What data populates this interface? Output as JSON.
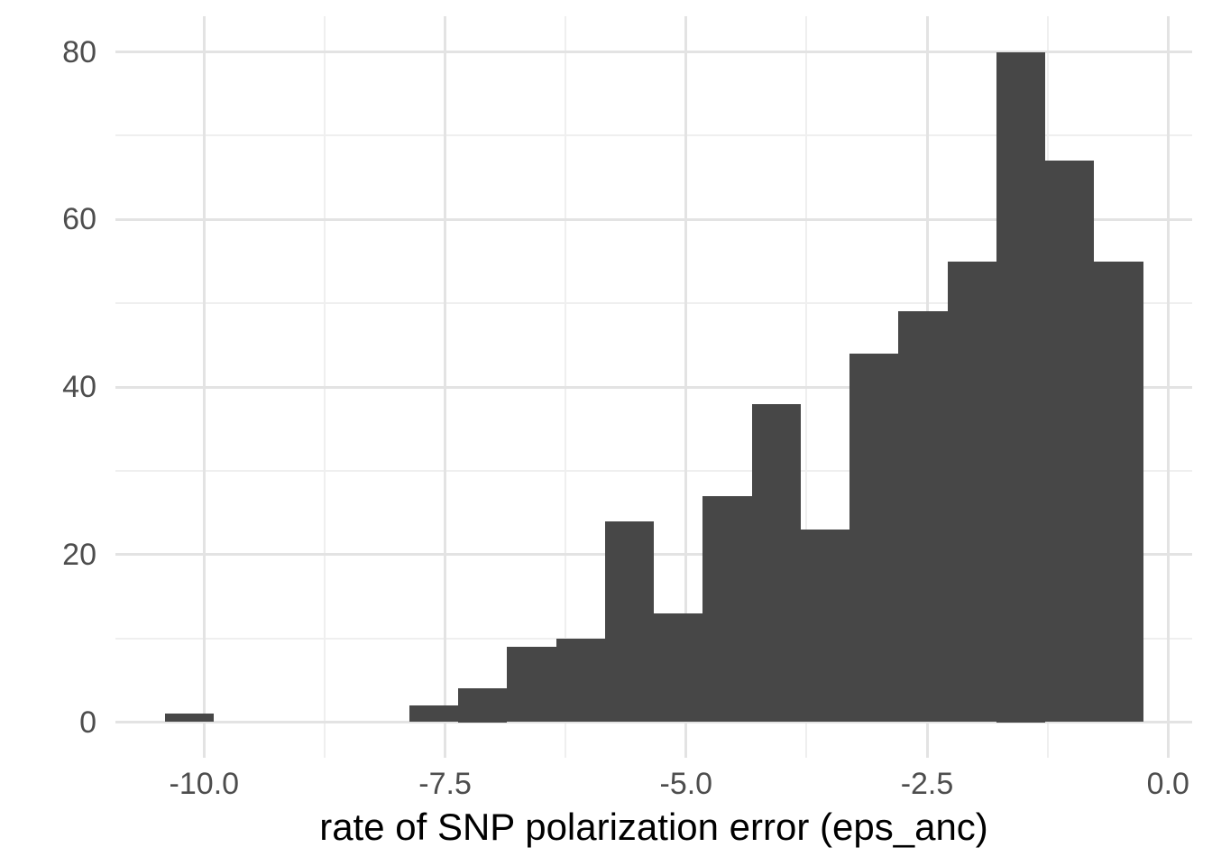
{
  "figure": {
    "background_color": "#ffffff"
  },
  "chart_data": {
    "type": "bar",
    "subtype": "histogram",
    "title": "",
    "xlabel": "rate of SNP polarization error (eps_anc)",
    "ylabel": "",
    "bin_start": -10.41,
    "bin_width": 0.5076,
    "counts": [
      1,
      0,
      0,
      0,
      0,
      2,
      4,
      9,
      10,
      24,
      13,
      27,
      38,
      23,
      44,
      49,
      55,
      80,
      67,
      55
    ],
    "bin_centers": [
      -10.16,
      -9.65,
      -9.14,
      -8.63,
      -8.13,
      -7.62,
      -7.11,
      -6.6,
      -6.1,
      -5.59,
      -5.08,
      -4.57,
      -4.06,
      -3.56,
      -3.05,
      -2.54,
      -2.03,
      -1.53,
      -1.02,
      -0.51
    ],
    "x_tick_values": [
      -10.0,
      -7.5,
      -5.0,
      -2.5,
      0.0
    ],
    "x_tick_labels": [
      "-10.0",
      "-7.5",
      "-5.0",
      "-2.5",
      "0.0"
    ],
    "y_tick_values": [
      0,
      20,
      40,
      60,
      80
    ],
    "y_tick_labels": [
      "0",
      "20",
      "40",
      "60",
      "80"
    ],
    "x_range": [
      -10.92,
      0.25
    ],
    "y_range": [
      -4.25,
      84.25
    ],
    "grid": true,
    "legend_position": "none",
    "colors": {
      "bar_fill": "#474747",
      "grid_major": "#e3e3e3",
      "grid_minor": "#efefef",
      "tick_label": "#4d4d4d",
      "axis_title": "#000000",
      "panel_background": "#ffffff"
    }
  }
}
